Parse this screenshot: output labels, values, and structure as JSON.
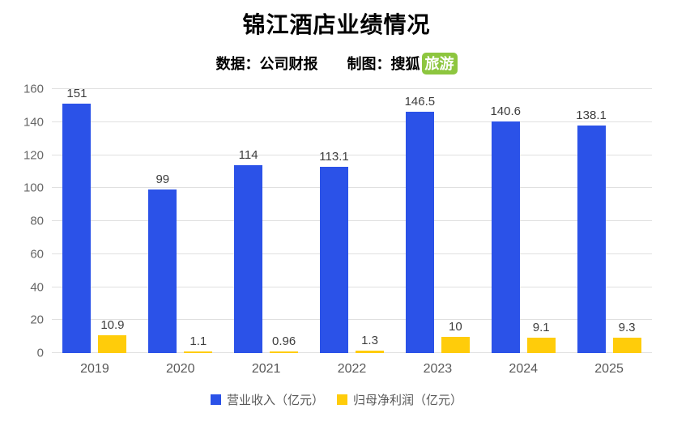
{
  "title": "锦江酒店业绩情况",
  "subtitle": {
    "data_label": "数据：",
    "data_value": "公司财报",
    "chart_by_label": "制图：",
    "chart_by_value": "搜狐",
    "badge": "旅游"
  },
  "colors": {
    "revenue_blue": "#2B52E8",
    "profit_yellow": "#FFCC0A",
    "badge_green": "#8DC63F",
    "gridline": "#E0E0E0",
    "axis_text": "#666666",
    "value_text": "#3D3D3D"
  },
  "chart_data": {
    "type": "bar",
    "title": "锦江酒店业绩情况",
    "categories": [
      "2019",
      "2020",
      "2021",
      "2022",
      "2023",
      "2024",
      "2025"
    ],
    "series": [
      {
        "name": "营业收入（亿元）",
        "key": "revenue",
        "color": "#2B52E8",
        "values": [
          151,
          99,
          114,
          113.1,
          146.5,
          140.6,
          138.1
        ]
      },
      {
        "name": "归母净利润（亿元）",
        "key": "net-profit",
        "color": "#FFCC0A",
        "values": [
          10.9,
          1.1,
          0.96,
          1.3,
          10,
          9.1,
          9.3
        ]
      }
    ],
    "ylim": [
      0,
      160
    ],
    "ytick_step": 20,
    "grid": true,
    "legend_position": "bottom"
  }
}
